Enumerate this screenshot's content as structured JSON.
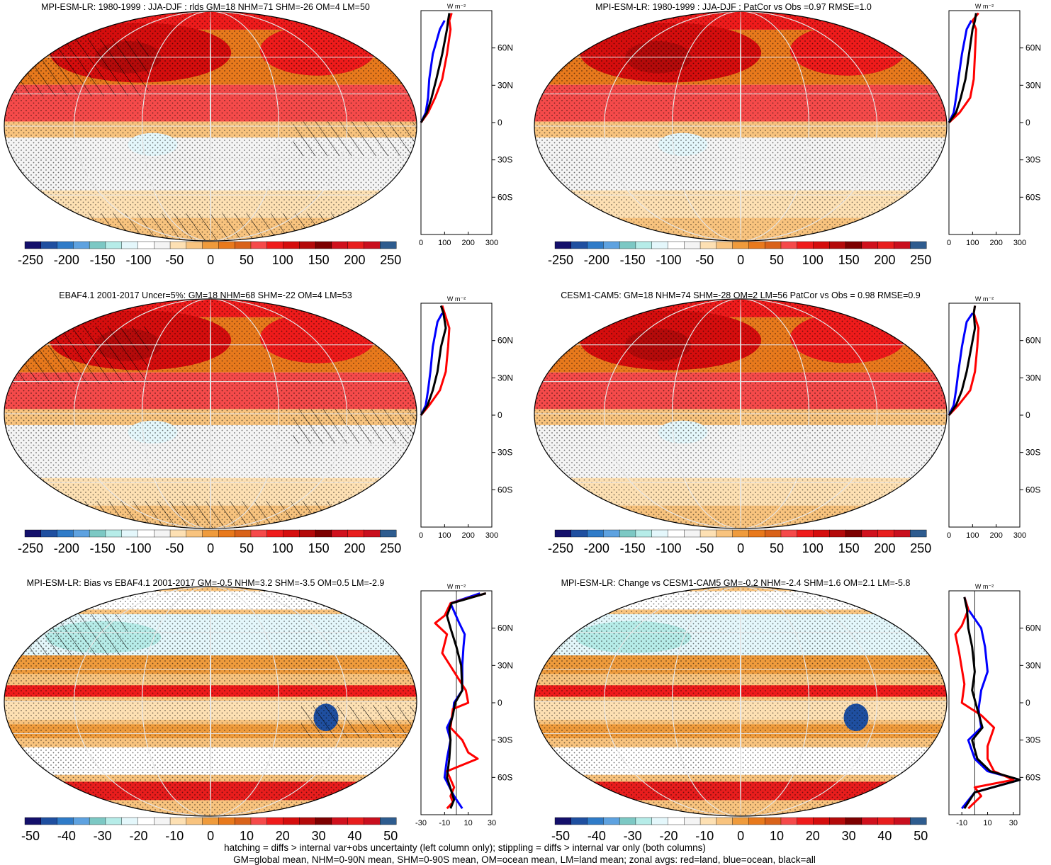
{
  "colorbar_colors": [
    "#14106b",
    "#1f4fa0",
    "#2f7bc8",
    "#5ea2e0",
    "#7cc8c4",
    "#b6ece8",
    "#e4f7fb",
    "#ffffff",
    "#f4f4f4",
    "#fde0b3",
    "#f8c37e",
    "#ef9b3c",
    "#e8791c",
    "#d9621a",
    "#f54a4a",
    "#ef1b1b",
    "#d50d0d",
    "#b40a0a",
    "#7d0000",
    "#d0111d",
    "#e81d1d",
    "#c90f1e",
    "#2e5c8f"
  ],
  "lines": {
    "land": "#ff0000",
    "ocean": "#0000ff",
    "all": "#000000"
  },
  "panels": [
    {
      "id": "p1",
      "title": "MPI-ESM-LR: 1980-1999 : JJA-DJF : rlds GM=18 NHM=71 SHM=-26 OM=4 LM=50",
      "style": "abs",
      "hatch": "heavy",
      "cb_labels": [
        "-250",
        "-200",
        "-150",
        "-100",
        "-50",
        "0",
        "50",
        "100",
        "150",
        "200",
        "250"
      ],
      "zonal": {
        "unit": "W m⁻²",
        "xlim": [
          0,
          300
        ],
        "xticks": [
          "0",
          "100",
          "200",
          "300"
        ],
        "lat_labels": [
          "60N",
          "30N",
          "0",
          "30S",
          "60S"
        ],
        "land": [
          [
            0,
            0
          ],
          [
            30,
            8
          ],
          [
            60,
            20
          ],
          [
            90,
            35
          ],
          [
            110,
            55
          ],
          [
            125,
            75
          ],
          [
            120,
            82
          ],
          [
            130,
            88
          ]
        ],
        "ocean": [
          [
            0,
            0
          ],
          [
            20,
            8
          ],
          [
            30,
            20
          ],
          [
            35,
            35
          ],
          [
            50,
            55
          ],
          [
            80,
            75
          ],
          [
            100,
            82
          ]
        ],
        "all": [
          [
            0,
            0
          ],
          [
            25,
            8
          ],
          [
            45,
            20
          ],
          [
            65,
            35
          ],
          [
            90,
            55
          ],
          [
            110,
            75
          ],
          [
            115,
            82
          ],
          [
            120,
            88
          ]
        ]
      }
    },
    {
      "id": "p2",
      "title": "MPI-ESM-LR: 1980-1999 : JJA-DJF : PatCor vs Obs =0.97 RMSE=1.0",
      "style": "abs",
      "hatch": "none",
      "cb_labels": [
        "-250",
        "-200",
        "-150",
        "-100",
        "-50",
        "0",
        "50",
        "100",
        "150",
        "200",
        "250"
      ],
      "zonal": {
        "unit": "W m⁻²",
        "xlim": [
          0,
          300
        ],
        "xticks": [
          "0",
          "100",
          "200",
          "300"
        ],
        "lat_labels": [
          "60N",
          "30N",
          "0",
          "30S",
          "60S"
        ],
        "land": [
          [
            0,
            0
          ],
          [
            45,
            8
          ],
          [
            90,
            20
          ],
          [
            105,
            35
          ],
          [
            110,
            55
          ],
          [
            115,
            75
          ],
          [
            100,
            82
          ],
          [
            125,
            88
          ]
        ],
        "ocean": [
          [
            0,
            0
          ],
          [
            20,
            8
          ],
          [
            30,
            20
          ],
          [
            40,
            35
          ],
          [
            55,
            55
          ],
          [
            75,
            75
          ],
          [
            95,
            82
          ]
        ],
        "all": [
          [
            0,
            0
          ],
          [
            30,
            8
          ],
          [
            50,
            20
          ],
          [
            70,
            35
          ],
          [
            85,
            55
          ],
          [
            100,
            75
          ],
          [
            110,
            82
          ],
          [
            115,
            88
          ]
        ]
      }
    },
    {
      "id": "p3",
      "title": "EBAF4.1 2001-2017 Uncer=5%: GM=18 NHM=68 SHM=-22 OM=4 LM=53",
      "style": "abs",
      "hatch": "heavy",
      "cb_labels": [
        "-250",
        "-200",
        "-150",
        "-100",
        "-50",
        "0",
        "50",
        "100",
        "150",
        "200",
        "250"
      ],
      "zonal": {
        "unit": "W m⁻²",
        "xlim": [
          0,
          300
        ],
        "xticks": [
          "0",
          "100",
          "200",
          "300"
        ],
        "lat_labels": [
          "60N",
          "30N",
          "0",
          "30S",
          "60S"
        ],
        "land": [
          [
            0,
            0
          ],
          [
            35,
            8
          ],
          [
            80,
            20
          ],
          [
            105,
            35
          ],
          [
            115,
            55
          ],
          [
            120,
            70
          ],
          [
            100,
            82
          ],
          [
            90,
            88
          ]
        ],
        "ocean": [
          [
            0,
            0
          ],
          [
            20,
            8
          ],
          [
            30,
            20
          ],
          [
            40,
            35
          ],
          [
            50,
            55
          ],
          [
            70,
            75
          ],
          [
            90,
            82
          ]
        ],
        "all": [
          [
            0,
            0
          ],
          [
            28,
            8
          ],
          [
            50,
            20
          ],
          [
            70,
            35
          ],
          [
            85,
            55
          ],
          [
            105,
            70
          ],
          [
            95,
            82
          ],
          [
            85,
            88
          ]
        ]
      }
    },
    {
      "id": "p4",
      "title": "CESM1-CAM5: GM=18 NHM=74 SHM=-28 OM=2 LM=56 PatCor vs Obs = 0.98 RMSE=0.9",
      "style": "abs",
      "hatch": "none",
      "cb_labels": [
        "-250",
        "-200",
        "-150",
        "-100",
        "-50",
        "0",
        "50",
        "100",
        "150",
        "200",
        "250"
      ],
      "zonal": {
        "unit": "W m⁻²",
        "xlim": [
          0,
          300
        ],
        "xticks": [
          "0",
          "100",
          "200",
          "300"
        ],
        "lat_labels": [
          "60N",
          "30N",
          "0",
          "30S",
          "60S"
        ],
        "land": [
          [
            0,
            0
          ],
          [
            40,
            8
          ],
          [
            90,
            20
          ],
          [
            110,
            35
          ],
          [
            120,
            55
          ],
          [
            125,
            70
          ],
          [
            105,
            82
          ],
          [
            110,
            88
          ]
        ],
        "ocean": [
          [
            0,
            0
          ],
          [
            20,
            8
          ],
          [
            30,
            20
          ],
          [
            40,
            35
          ],
          [
            55,
            55
          ],
          [
            75,
            75
          ],
          [
            100,
            82
          ]
        ],
        "all": [
          [
            0,
            0
          ],
          [
            30,
            8
          ],
          [
            55,
            20
          ],
          [
            75,
            35
          ],
          [
            95,
            55
          ],
          [
            110,
            70
          ],
          [
            105,
            82
          ],
          [
            110,
            88
          ]
        ]
      }
    },
    {
      "id": "p5",
      "title": "MPI-ESM-LR: Bias vs EBAF4.1 2001-2017 GM=-0.5 NHM=3.2 SHM=-3.5 OM=0.5 LM=-2.9",
      "style": "diff",
      "hatch": "light",
      "cb_labels": [
        "-50",
        "-40",
        "-30",
        "-20",
        "-10",
        "0",
        "10",
        "20",
        "30",
        "40",
        "50"
      ],
      "zonal": {
        "unit": "W m⁻²",
        "xlim": [
          -30,
          30
        ],
        "xticks": [
          "-30",
          "-10",
          "10",
          "30"
        ],
        "lat_labels": [
          "60N",
          "30N",
          "0",
          "30S",
          "60S"
        ],
        "land": [
          [
            -8,
            -85
          ],
          [
            -3,
            -80
          ],
          [
            -5,
            -75
          ],
          [
            -2,
            -68
          ],
          [
            -8,
            -55
          ],
          [
            18,
            -45
          ],
          [
            10,
            -40
          ],
          [
            5,
            -30
          ],
          [
            -5,
            -20
          ],
          [
            -3,
            -5
          ],
          [
            10,
            0
          ],
          [
            8,
            10
          ],
          [
            -12,
            40
          ],
          [
            -8,
            55
          ],
          [
            -18,
            64
          ],
          [
            -10,
            70
          ],
          [
            -5,
            80
          ],
          [
            25,
            88
          ]
        ],
        "ocean": [
          [
            5,
            -85
          ],
          [
            -2,
            -75
          ],
          [
            -10,
            -60
          ],
          [
            -8,
            -45
          ],
          [
            -5,
            -30
          ],
          [
            -8,
            -20
          ],
          [
            -3,
            -10
          ],
          [
            -2,
            0
          ],
          [
            5,
            10
          ],
          [
            5,
            30
          ],
          [
            6,
            45
          ],
          [
            7,
            55
          ],
          [
            2,
            65
          ],
          [
            -5,
            80
          ],
          [
            20,
            88
          ]
        ],
        "all": [
          [
            -5,
            -85
          ],
          [
            -2,
            -78
          ],
          [
            -8,
            -60
          ],
          [
            -6,
            -45
          ],
          [
            -5,
            -30
          ],
          [
            -6,
            -20
          ],
          [
            -3,
            -10
          ],
          [
            -1,
            0
          ],
          [
            5,
            10
          ],
          [
            4,
            30
          ],
          [
            0,
            45
          ],
          [
            -5,
            60
          ],
          [
            -8,
            70
          ],
          [
            -4,
            80
          ],
          [
            25,
            88
          ]
        ]
      }
    },
    {
      "id": "p6",
      "title": "MPI-ESM-LR: Change vs CESM1-CAM5 GM=-0.2 NHM=-2.4 SHM=1.6 OM=2.1 LM=-5.8",
      "style": "diff",
      "hatch": "none",
      "cb_labels": [
        "-50",
        "-40",
        "-30",
        "-20",
        "-10",
        "0",
        "10",
        "20",
        "30",
        "40",
        "50"
      ],
      "zonal": {
        "unit": "W m⁻²",
        "xlim": [
          -20,
          35
        ],
        "xticks": [
          "-10",
          "10",
          "30"
        ],
        "lat_labels": [
          "60N",
          "30N",
          "0",
          "30S",
          "60S"
        ],
        "land": [
          [
            -5,
            -85
          ],
          [
            5,
            -75
          ],
          [
            0,
            -68
          ],
          [
            30,
            -62
          ],
          [
            15,
            -55
          ],
          [
            10,
            -45
          ],
          [
            10,
            -35
          ],
          [
            15,
            -20
          ],
          [
            5,
            -10
          ],
          [
            -10,
            0
          ],
          [
            -8,
            15
          ],
          [
            -12,
            40
          ],
          [
            -15,
            55
          ],
          [
            -10,
            62
          ],
          [
            -5,
            75
          ],
          [
            -8,
            85
          ]
        ],
        "ocean": [
          [
            -10,
            -85
          ],
          [
            0,
            -72
          ],
          [
            35,
            -62
          ],
          [
            10,
            -55
          ],
          [
            0,
            -45
          ],
          [
            -5,
            -30
          ],
          [
            5,
            -20
          ],
          [
            3,
            -5
          ],
          [
            5,
            10
          ],
          [
            10,
            25
          ],
          [
            8,
            45
          ],
          [
            5,
            60
          ],
          [
            -5,
            75
          ],
          [
            -8,
            85
          ]
        ],
        "all": [
          [
            -8,
            -85
          ],
          [
            0,
            -72
          ],
          [
            35,
            -62
          ],
          [
            12,
            -55
          ],
          [
            2,
            -45
          ],
          [
            -2,
            -30
          ],
          [
            6,
            -20
          ],
          [
            2,
            -5
          ],
          [
            -2,
            10
          ],
          [
            0,
            25
          ],
          [
            -2,
            45
          ],
          [
            -5,
            60
          ],
          [
            -6,
            75
          ],
          [
            -8,
            85
          ]
        ]
      }
    }
  ],
  "footer": {
    "line1": "hatching = diffs > internal var+obs uncertainty (left column only); stippling = diffs > internal var only (both columns)",
    "line2": "GM=global mean, NHM=0-90N mean, SHM=0-90S mean, OM=ocean mean, LM=land mean; zonal avgs: red=land, blue=ocean, black=all"
  }
}
